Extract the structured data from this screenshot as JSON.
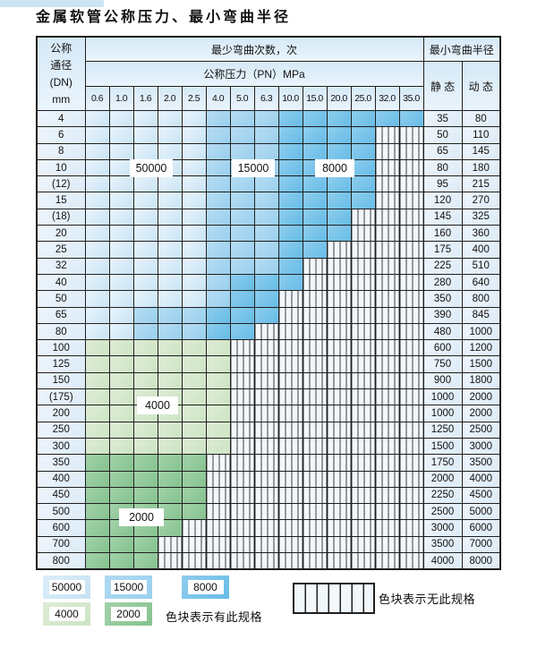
{
  "title": "金属软管公称压力、最小弯曲半径",
  "colors": {
    "cycles_50000": "#d2e8f7",
    "cycles_15000": "#a5d6f0",
    "cycles_8000": "#77c4ea",
    "cycles_4000": "#d5e8cc",
    "cycles_2000": "#92c89a",
    "no_spec_bg": "#f2f7fc",
    "grid_line": "#1f1f1f"
  },
  "table": {
    "header": {
      "dn_lines": [
        "公称",
        "通径",
        "(DN)",
        "mm"
      ],
      "cycles": "最少弯曲次数，次",
      "pressure": "公称压力（PN）MPa",
      "radius": "最小弯曲半径",
      "static_label": "静 态",
      "dynamic_label": "动 态",
      "pressures": [
        "0.6",
        "1.0",
        "1.6",
        "2.0",
        "2.5",
        "4.0",
        "5.0",
        "6.3",
        "10.0",
        "15.0",
        "20.0",
        "25.0",
        "32.0",
        "35.0"
      ]
    },
    "rows": [
      {
        "dn": "4",
        "zones": [
          [
            "c50",
            5
          ],
          [
            "c15",
            3
          ],
          [
            "c8",
            6
          ]
        ],
        "static": "35",
        "dynamic": "80"
      },
      {
        "dn": "6",
        "zones": [
          [
            "c50",
            5
          ],
          [
            "c15",
            3
          ],
          [
            "c8",
            4
          ]
        ],
        "static": "50",
        "dynamic": "110"
      },
      {
        "dn": "8",
        "zones": [
          [
            "c50",
            5
          ],
          [
            "c15",
            3
          ],
          [
            "c8",
            4
          ]
        ],
        "static": "65",
        "dynamic": "145"
      },
      {
        "dn": "10",
        "zones": [
          [
            "c50",
            5
          ],
          [
            "c15",
            3
          ],
          [
            "c8",
            4
          ]
        ],
        "static": "80",
        "dynamic": "180"
      },
      {
        "dn": "(12)",
        "zones": [
          [
            "c50",
            5
          ],
          [
            "c15",
            3
          ],
          [
            "c8",
            4
          ]
        ],
        "static": "95",
        "dynamic": "215"
      },
      {
        "dn": "15",
        "zones": [
          [
            "c50",
            5
          ],
          [
            "c15",
            3
          ],
          [
            "c8",
            4
          ]
        ],
        "static": "120",
        "dynamic": "270"
      },
      {
        "dn": "(18)",
        "zones": [
          [
            "c50",
            5
          ],
          [
            "c15",
            3
          ],
          [
            "c8",
            3
          ]
        ],
        "static": "145",
        "dynamic": "325"
      },
      {
        "dn": "20",
        "zones": [
          [
            "c50",
            5
          ],
          [
            "c15",
            3
          ],
          [
            "c8",
            3
          ]
        ],
        "static": "160",
        "dynamic": "360"
      },
      {
        "dn": "25",
        "zones": [
          [
            "c50",
            5
          ],
          [
            "c15",
            3
          ],
          [
            "c8",
            2
          ]
        ],
        "static": "175",
        "dynamic": "400"
      },
      {
        "dn": "32",
        "zones": [
          [
            "c50",
            5
          ],
          [
            "c15",
            3
          ],
          [
            "c8",
            1
          ]
        ],
        "static": "225",
        "dynamic": "510"
      },
      {
        "dn": "40",
        "zones": [
          [
            "c50",
            5
          ],
          [
            "c15",
            1
          ],
          [
            "c8",
            3
          ]
        ],
        "static": "280",
        "dynamic": "640"
      },
      {
        "dn": "50",
        "zones": [
          [
            "c50",
            5
          ],
          [
            "c15",
            1
          ],
          [
            "c8",
            2
          ]
        ],
        "static": "350",
        "dynamic": "800"
      },
      {
        "dn": "65",
        "zones": [
          [
            "c50",
            2
          ],
          [
            "c15",
            3
          ],
          [
            "c8",
            3
          ]
        ],
        "static": "390",
        "dynamic": "845"
      },
      {
        "dn": "80",
        "zones": [
          [
            "c50",
            2
          ],
          [
            "c15",
            3
          ],
          [
            "c8",
            2
          ]
        ],
        "static": "480",
        "dynamic": "1000"
      },
      {
        "dn": "100",
        "zones": [
          [
            "c4",
            6
          ]
        ],
        "static": "600",
        "dynamic": "1200"
      },
      {
        "dn": "125",
        "zones": [
          [
            "c4",
            6
          ]
        ],
        "static": "750",
        "dynamic": "1500"
      },
      {
        "dn": "150",
        "zones": [
          [
            "c4",
            6
          ]
        ],
        "static": "900",
        "dynamic": "1800"
      },
      {
        "dn": "(175)",
        "zones": [
          [
            "c4",
            6
          ]
        ],
        "static": "1000",
        "dynamic": "2000"
      },
      {
        "dn": "200",
        "zones": [
          [
            "c4",
            6
          ]
        ],
        "static": "1000",
        "dynamic": "2000"
      },
      {
        "dn": "250",
        "zones": [
          [
            "c4",
            6
          ]
        ],
        "static": "1250",
        "dynamic": "2500"
      },
      {
        "dn": "300",
        "zones": [
          [
            "c4",
            6
          ]
        ],
        "static": "1500",
        "dynamic": "3000"
      },
      {
        "dn": "350",
        "zones": [
          [
            "c2",
            5
          ]
        ],
        "static": "1750",
        "dynamic": "3500"
      },
      {
        "dn": "400",
        "zones": [
          [
            "c2",
            5
          ]
        ],
        "static": "2000",
        "dynamic": "4000"
      },
      {
        "dn": "450",
        "zones": [
          [
            "c2",
            5
          ]
        ],
        "static": "2250",
        "dynamic": "4500"
      },
      {
        "dn": "500",
        "zones": [
          [
            "c2",
            5
          ]
        ],
        "static": "2500",
        "dynamic": "5000"
      },
      {
        "dn": "600",
        "zones": [
          [
            "c2",
            4
          ]
        ],
        "static": "3000",
        "dynamic": "6000"
      },
      {
        "dn": "700",
        "zones": [
          [
            "c2",
            3
          ]
        ],
        "static": "3500",
        "dynamic": "7000"
      },
      {
        "dn": "800",
        "zones": [
          [
            "c2",
            3
          ]
        ],
        "static": "4000",
        "dynamic": "8000"
      }
    ]
  },
  "overlays": {
    "b50000": "50000",
    "b15000": "15000",
    "b8000": "8000",
    "b4000": "4000",
    "b2000": "2000"
  },
  "legend": {
    "items": [
      {
        "label": "50000"
      },
      {
        "label": "15000"
      },
      {
        "label": "8000"
      },
      {
        "label": "4000"
      },
      {
        "label": "2000"
      }
    ],
    "has_spec": "色块表示有此规格",
    "no_spec": "色块表示无此规格"
  }
}
